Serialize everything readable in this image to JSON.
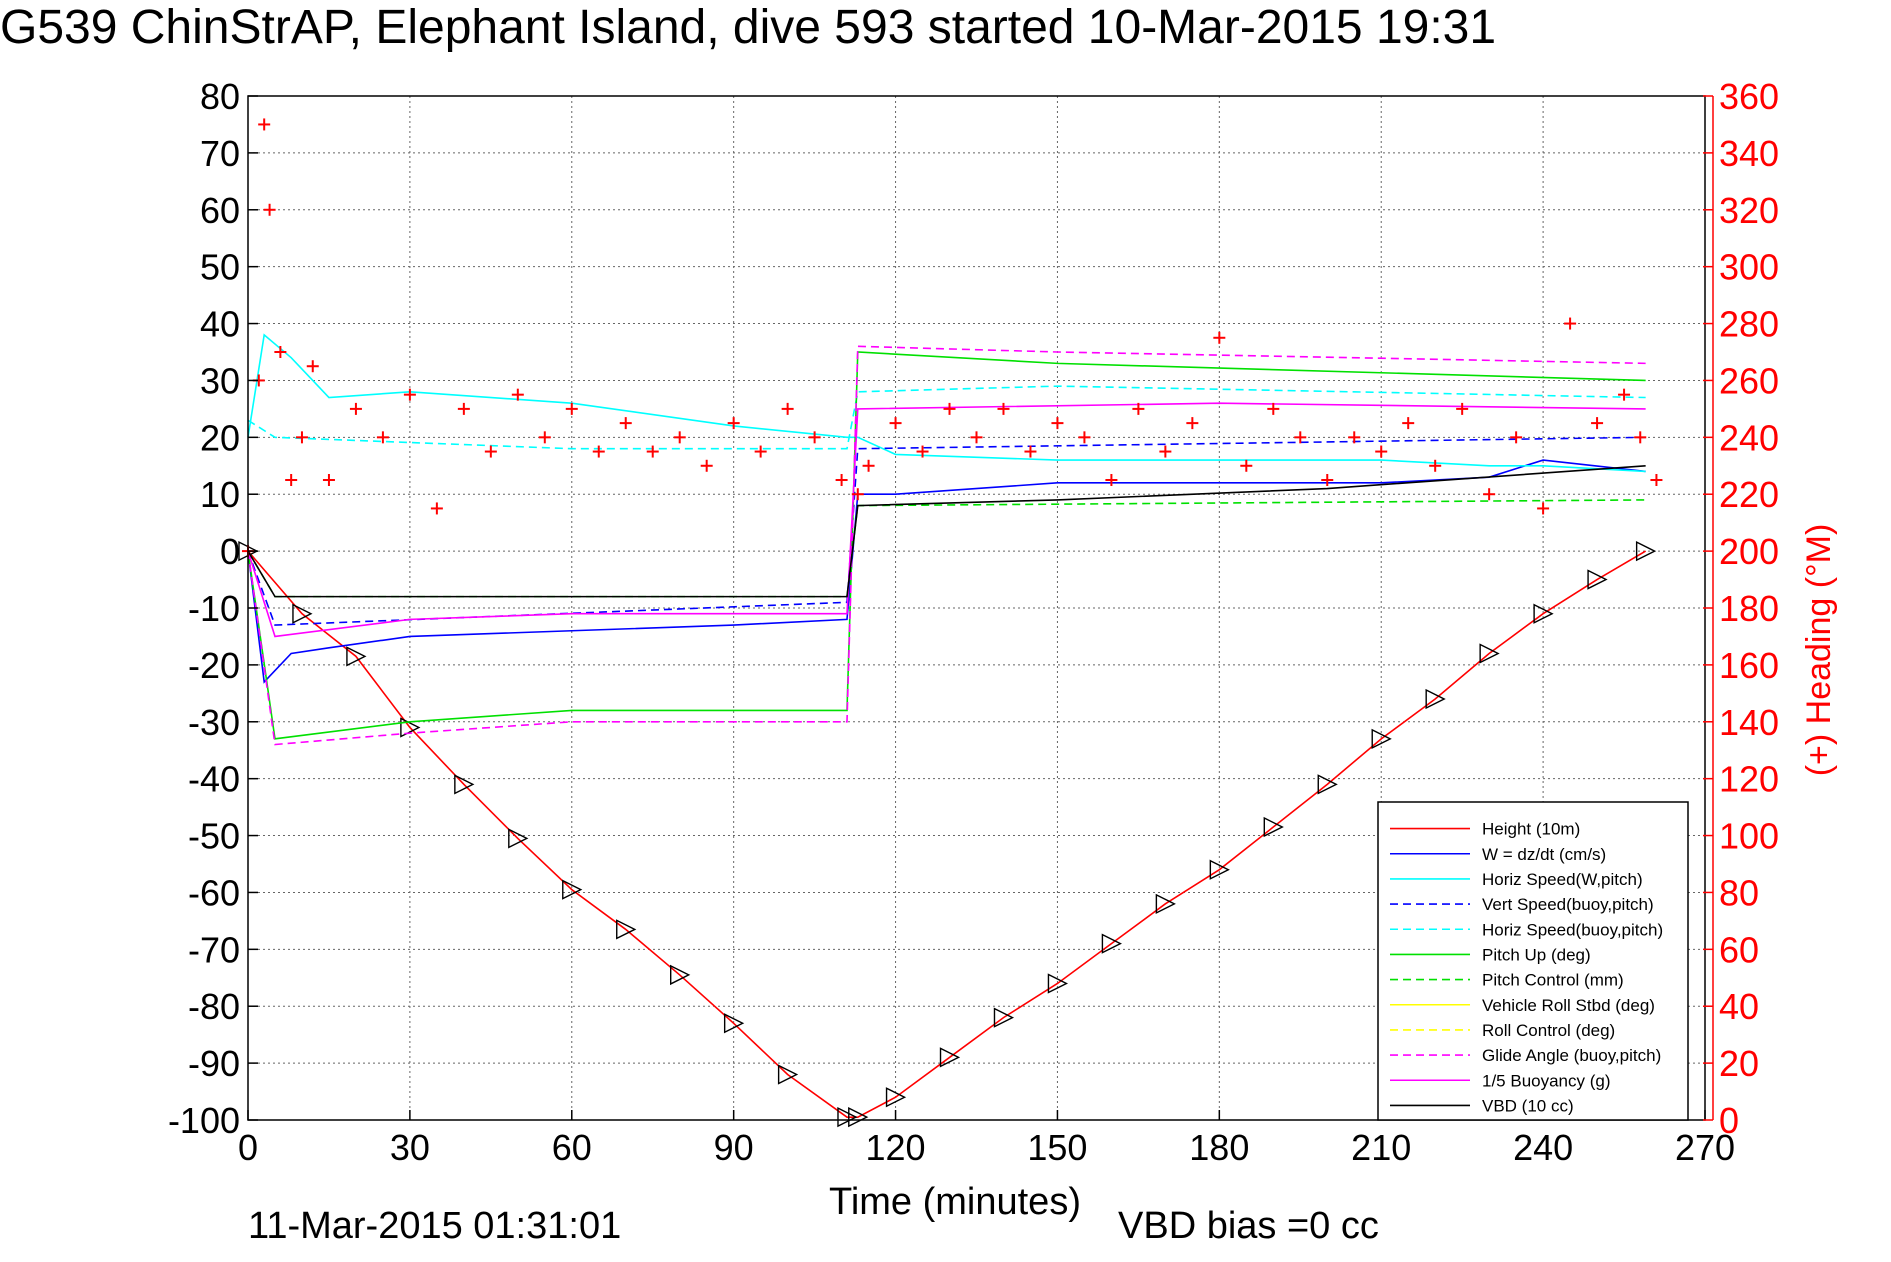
{
  "title": "G539 ChinStrAP, Elephant Island, dive 593 started 10-Mar-2015 19:31",
  "footer": {
    "timestamp": "11-Mar-2015 01:31:01",
    "vbd_bias": "VBD bias =0 cc"
  },
  "colors": {
    "height": "#ff0000",
    "w": "#0000ff",
    "horiz_speed": "#00ffff",
    "pitch": "#00e000",
    "roll": "#ffff00",
    "glide": "#ff00ff",
    "vbd": "#000000",
    "heading": "#ff0000"
  },
  "chart_data": {
    "type": "line",
    "xlabel": "Time (minutes)",
    "ylabel_right": "(+) Heading (°M)",
    "xlim": [
      0,
      270
    ],
    "ylim_left": [
      -100,
      80
    ],
    "ylim_right": [
      0,
      360
    ],
    "x_ticks": [
      "0",
      "30",
      "60",
      "90",
      "120",
      "150",
      "180",
      "210",
      "240",
      "270"
    ],
    "y_left_ticks": [
      "80",
      "70",
      "60",
      "50",
      "40",
      "30",
      "20",
      "10",
      "0",
      "-10",
      "-20",
      "-30",
      "-40",
      "-50",
      "-60",
      "-70",
      "-80",
      "-90",
      "-100"
    ],
    "y_right_ticks": [
      "360",
      "340",
      "320",
      "300",
      "280",
      "260",
      "240",
      "220",
      "200",
      "180",
      "160",
      "140",
      "120",
      "100",
      "80",
      "60",
      "40",
      "20",
      "0"
    ],
    "grid": true,
    "legend_position": "bottom-right",
    "legend": [
      {
        "label": "Height (10m)",
        "color": "#ff0000",
        "dash": "solid"
      },
      {
        "label": "W = dz/dt (cm/s)",
        "color": "#0000ff",
        "dash": "solid"
      },
      {
        "label": "Horiz Speed(W,pitch)",
        "color": "#00ffff",
        "dash": "solid"
      },
      {
        "label": "Vert Speed(buoy,pitch)",
        "color": "#0000ff",
        "dash": "dashed"
      },
      {
        "label": "Horiz Speed(buoy,pitch)",
        "color": "#00ffff",
        "dash": "dashed"
      },
      {
        "label": "Pitch Up (deg)",
        "color": "#00e000",
        "dash": "solid"
      },
      {
        "label": "Pitch Control (mm)",
        "color": "#00e000",
        "dash": "dashed"
      },
      {
        "label": "Vehicle Roll Stbd (deg)",
        "color": "#ffff00",
        "dash": "solid"
      },
      {
        "label": "Roll Control (deg)",
        "color": "#ffff00",
        "dash": "dashed"
      },
      {
        "label": "Glide Angle (buoy,pitch)",
        "color": "#ff00ff",
        "dash": "dashed"
      },
      {
        "label": "1/5 Buoyancy (g)",
        "color": "#ff00ff",
        "dash": "solid"
      },
      {
        "label": "VBD (10 cc)",
        "color": "#000000",
        "dash": "solid"
      }
    ],
    "series": [
      {
        "name": "Height (10m)",
        "x": [
          0,
          10,
          20,
          30,
          40,
          50,
          60,
          70,
          80,
          90,
          100,
          111,
          113,
          120,
          130,
          140,
          150,
          160,
          170,
          180,
          190,
          200,
          210,
          220,
          230,
          240,
          250,
          259
        ],
        "y": [
          0,
          -11,
          -18.5,
          -31,
          -41,
          -50.5,
          -59.5,
          -66.5,
          -74.5,
          -83,
          -92,
          -99.5,
          -99.5,
          -96,
          -89,
          -82,
          -76,
          -69,
          -62,
          -56,
          -48.5,
          -41,
          -33,
          -26,
          -18,
          -11,
          -5,
          0
        ]
      },
      {
        "name": "W = dz/dt (cm/s)",
        "x": [
          0,
          3,
          8,
          15,
          30,
          60,
          90,
          111,
          113,
          120,
          150,
          180,
          210,
          230,
          240,
          259
        ],
        "y": [
          0,
          -23,
          -18,
          -17,
          -15,
          -14,
          -13,
          -12,
          10,
          10,
          12,
          12,
          12,
          13,
          16,
          14
        ]
      },
      {
        "name": "Horiz Speed(W,pitch)",
        "x": [
          0,
          3,
          8,
          15,
          30,
          60,
          90,
          111,
          113,
          120,
          150,
          180,
          210,
          230,
          240,
          259
        ],
        "y": [
          20,
          38,
          34,
          27,
          28,
          26,
          22,
          20,
          20,
          17,
          16,
          16,
          16,
          15,
          15,
          14
        ]
      },
      {
        "name": "Vert Speed(buoy,pitch)",
        "x": [
          0,
          5,
          111,
          113,
          259
        ],
        "y": [
          0,
          -13,
          -9,
          18,
          20
        ]
      },
      {
        "name": "Horiz Speed(buoy,pitch)",
        "x": [
          0,
          5,
          60,
          111,
          113,
          150,
          259
        ],
        "y": [
          23,
          20,
          18,
          18,
          28,
          29,
          27
        ]
      },
      {
        "name": "Pitch Up (deg)",
        "x": [
          0,
          5,
          30,
          60,
          111,
          113,
          150,
          259
        ],
        "y": [
          0,
          -33,
          -30,
          -28,
          -28,
          35,
          33,
          30
        ]
      },
      {
        "name": "Pitch Control (mm)",
        "x": [
          0,
          5,
          111,
          113,
          259
        ],
        "y": [
          0,
          -8,
          -8,
          8,
          9
        ]
      },
      {
        "name": "Glide Angle (buoy,pitch)",
        "x": [
          0,
          5,
          30,
          60,
          111,
          113,
          150,
          259
        ],
        "y": [
          0,
          -34,
          -32,
          -30,
          -30,
          36,
          35,
          33
        ]
      },
      {
        "name": "1/5 Buoyancy (g)",
        "x": [
          0,
          5,
          30,
          60,
          111,
          113,
          180,
          259
        ],
        "y": [
          0,
          -15,
          -12,
          -11,
          -11,
          25,
          26,
          25
        ]
      },
      {
        "name": "VBD (10 cc)",
        "x": [
          0,
          5,
          111,
          113,
          150,
          200,
          259
        ],
        "y": [
          0,
          -8,
          -8,
          8,
          9,
          11,
          15
        ]
      },
      {
        "name": "(+) Heading (°M)",
        "axis": "right",
        "x": [
          0,
          2,
          3,
          4,
          6,
          8,
          10,
          12,
          15,
          20,
          25,
          30,
          35,
          40,
          45,
          50,
          55,
          60,
          65,
          70,
          75,
          80,
          85,
          90,
          95,
          100,
          105,
          110,
          113,
          115,
          120,
          125,
          130,
          135,
          140,
          145,
          150,
          155,
          160,
          165,
          170,
          175,
          180,
          185,
          190,
          195,
          200,
          205,
          210,
          215,
          220,
          225,
          230,
          235,
          240,
          245,
          250,
          255,
          258,
          261
        ],
        "y": [
          200,
          260,
          350,
          320,
          270,
          225,
          240,
          265,
          225,
          250,
          240,
          255,
          215,
          250,
          235,
          255,
          240,
          250,
          235,
          245,
          235,
          240,
          230,
          245,
          235,
          250,
          240,
          225,
          220,
          230,
          245,
          235,
          250,
          240,
          250,
          235,
          245,
          240,
          225,
          250,
          235,
          245,
          275,
          230,
          250,
          240,
          225,
          240,
          235,
          245,
          230,
          250,
          220,
          240,
          215,
          280,
          245,
          255,
          240,
          225
        ]
      }
    ]
  }
}
